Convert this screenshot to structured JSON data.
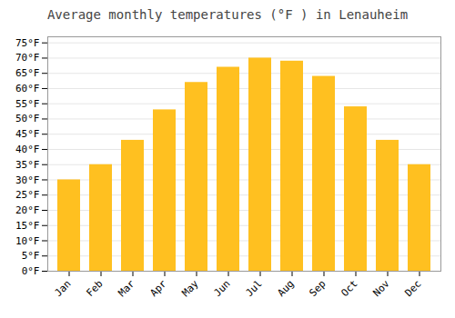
{
  "chart_data": {
    "type": "bar",
    "title": "Average monthly temperatures (°F ) in Lenauheim",
    "categories": [
      "Jan",
      "Feb",
      "Mar",
      "Apr",
      "May",
      "Jun",
      "Jul",
      "Aug",
      "Sep",
      "Oct",
      "Nov",
      "Dec"
    ],
    "values": [
      30,
      35,
      43,
      53,
      62,
      67,
      70,
      69,
      64,
      54,
      43,
      35
    ],
    "color": "#FFC020",
    "ylim": [
      0,
      77
    ],
    "yticks": [
      {
        "value": 0,
        "label": "0°F"
      },
      {
        "value": 5,
        "label": "5°F"
      },
      {
        "value": 10,
        "label": "10°F"
      },
      {
        "value": 15,
        "label": "15°F"
      },
      {
        "value": 20,
        "label": "20°F"
      },
      {
        "value": 25,
        "label": "25°F"
      },
      {
        "value": 30,
        "label": "30°F"
      },
      {
        "value": 35,
        "label": "35°F"
      },
      {
        "value": 40,
        "label": "40°F"
      },
      {
        "value": 45,
        "label": "45°F"
      },
      {
        "value": 50,
        "label": "50°F"
      },
      {
        "value": 55,
        "label": "55°F"
      },
      {
        "value": 60,
        "label": "60°F"
      },
      {
        "value": 65,
        "label": "65°F"
      },
      {
        "value": 70,
        "label": "70°F"
      },
      {
        "value": 75,
        "label": "75°F"
      }
    ],
    "grid": true
  }
}
